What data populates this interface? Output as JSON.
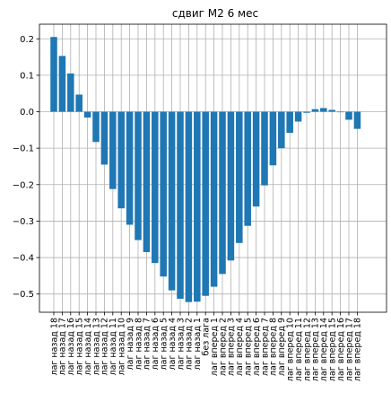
{
  "chart_data": {
    "type": "bar",
    "title": "сдвиг М2 6 мес",
    "xlabel": "",
    "ylabel": "",
    "ylim": [
      -0.55,
      0.24
    ],
    "yticks": [
      -0.5,
      -0.4,
      -0.3,
      -0.2,
      -0.1,
      0.0,
      0.1,
      0.2
    ],
    "ytick_labels": [
      "−0.5",
      "−0.4",
      "−0.3",
      "−0.2",
      "−0.1",
      "0.0",
      "0.1",
      "0.2"
    ],
    "grid": true,
    "bar_color": "#1f77b4",
    "categories": [
      "лаг назад 18",
      "лаг назад 17",
      "лаг назад 16",
      "лаг назад 15",
      "лаг назад 14",
      "лаг назад 13",
      "лаг назад 12",
      "лаг назад 11",
      "лаг назад 10",
      "лаг назад 9",
      "лаг назад 8",
      "лаг назад 7",
      "лаг назад 6",
      "лаг назад 5",
      "лаг назад 4",
      "лаг назад 3",
      "лаг назад 2",
      "лаг назад 1",
      "без лага",
      "лаг вперед 1",
      "лаг вперед 2",
      "лаг вперед 3",
      "лаг вперед 4",
      "лаг вперед 5",
      "лаг вперед 6",
      "лаг вперед 7",
      "лаг вперед 8",
      "лаг вперед 9",
      "лаг вперед 10",
      "лаг вперед 11",
      "лаг вперед 12",
      "лаг вперед 13",
      "лаг вперед 14",
      "лаг вперед 15",
      "лаг вперед 16",
      "лаг вперед 17",
      "лаг вперед 18"
    ],
    "values": [
      0.205,
      0.153,
      0.105,
      0.047,
      -0.016,
      -0.083,
      -0.145,
      -0.212,
      -0.265,
      -0.31,
      -0.352,
      -0.385,
      -0.415,
      -0.452,
      -0.49,
      -0.513,
      -0.522,
      -0.521,
      -0.505,
      -0.48,
      -0.445,
      -0.408,
      -0.36,
      -0.313,
      -0.26,
      -0.202,
      -0.147,
      -0.1,
      -0.058,
      -0.027,
      -0.003,
      0.007,
      0.01,
      0.005,
      -0.001,
      -0.022,
      -0.047
    ]
  }
}
